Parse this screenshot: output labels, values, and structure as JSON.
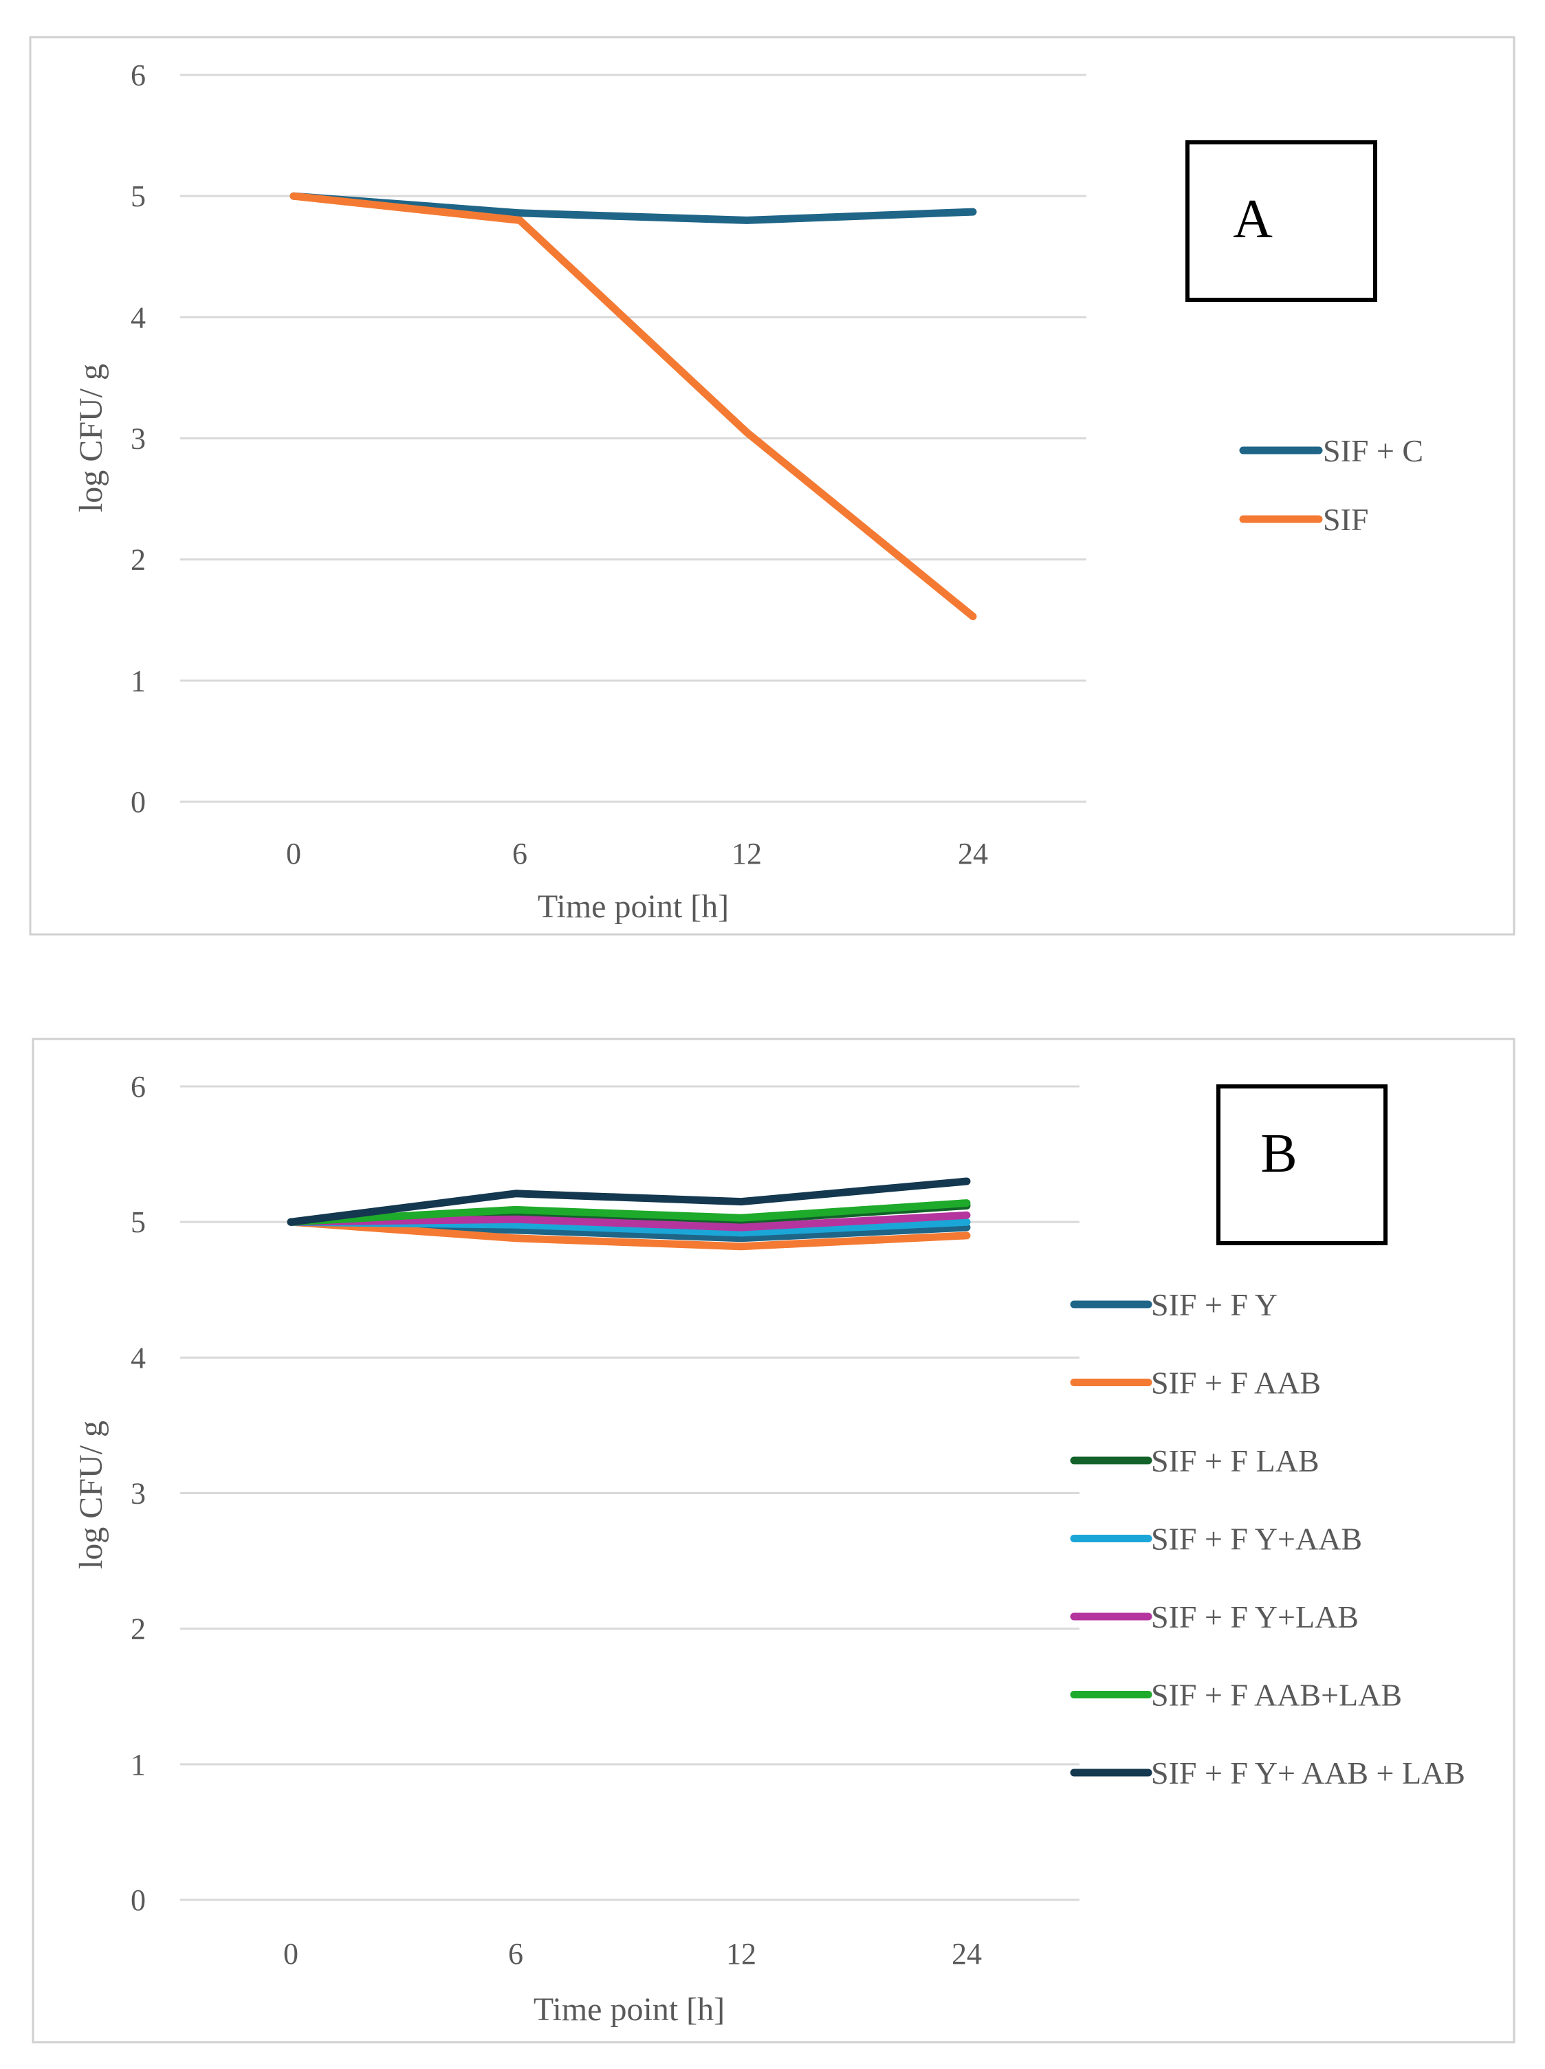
{
  "chart_data": [
    {
      "type": "line",
      "panel": "A",
      "categories": [
        "0",
        "6",
        "12",
        "24"
      ],
      "xlabel": "Time point [h]",
      "ylabel": "log CFU/ g",
      "ylim": [
        0,
        6
      ],
      "yticks": [
        "0",
        "1",
        "2",
        "3",
        "4",
        "5",
        "6"
      ],
      "grid": true,
      "legend_position": "right",
      "series": [
        {
          "name": "SIF + C",
          "color": "#1F6587",
          "values": [
            5.0,
            4.86,
            4.8,
            4.87
          ]
        },
        {
          "name": "SIF",
          "color": "#F47A33",
          "values": [
            5.0,
            4.8,
            3.05,
            1.53
          ]
        }
      ]
    },
    {
      "type": "line",
      "panel": "B",
      "categories": [
        "0",
        "6",
        "12",
        "24"
      ],
      "xlabel": "Time point [h]",
      "ylabel": "log CFU/ g",
      "ylim": [
        0,
        6
      ],
      "yticks": [
        "0",
        "1",
        "2",
        "3",
        "4",
        "5",
        "6"
      ],
      "grid": true,
      "legend_position": "right",
      "series": [
        {
          "name": "SIF + F Y",
          "color": "#1F6587",
          "values": [
            5.0,
            4.94,
            4.88,
            4.96
          ]
        },
        {
          "name": "SIF + F AAB",
          "color": "#F47A33",
          "values": [
            5.0,
            4.88,
            4.82,
            4.9
          ]
        },
        {
          "name": "SIF + F LAB",
          "color": "#12622A",
          "values": [
            5.0,
            5.07,
            5.01,
            5.12
          ]
        },
        {
          "name": "SIF + F Y+AAB",
          "color": "#1BA6D8",
          "values": [
            5.0,
            4.98,
            4.92,
            5.0
          ]
        },
        {
          "name": "SIF + F Y+LAB",
          "color": "#B5359E",
          "values": [
            5.0,
            5.02,
            4.96,
            5.05
          ]
        },
        {
          "name": "SIF + F AAB+LAB",
          "color": "#1EAA2A",
          "values": [
            5.0,
            5.09,
            5.03,
            5.14
          ]
        },
        {
          "name": "SIF + F Y+ AAB + LAB",
          "color": "#14384F",
          "values": [
            5.0,
            5.21,
            5.15,
            5.3
          ]
        }
      ]
    }
  ]
}
